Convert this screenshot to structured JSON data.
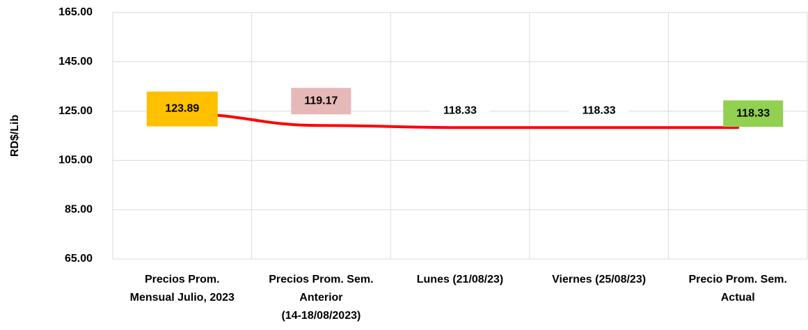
{
  "chart_data": {
    "type": "line",
    "y_label": "RD$/Lib",
    "categories": [
      "Precios Prom.\nMensual Julio, 2023",
      "Precios Prom. Sem.\nAnterior\n(14-18/08/2023)",
      "Lunes  (21/08/23)",
      "Viernes  (25/08/23)",
      "Precio Prom. Sem.\nActual"
    ],
    "values": [
      123.89,
      119.17,
      118.33,
      118.33,
      118.33
    ],
    "color": "#ff0000",
    "label_colors": [
      "#ffc000",
      "#e6b8b7",
      "#ffffff",
      "#ffffff",
      "#92d050"
    ],
    "ylim": [
      65,
      165
    ],
    "yticks": [
      {
        "value": 65,
        "label": "65.00"
      },
      {
        "value": 85,
        "label": "85.00"
      },
      {
        "value": 105,
        "label": "105.00"
      },
      {
        "value": 125,
        "label": "125.00"
      },
      {
        "value": 145,
        "label": "145.00"
      },
      {
        "value": 165,
        "label": "165.00"
      }
    ],
    "grid": true
  }
}
